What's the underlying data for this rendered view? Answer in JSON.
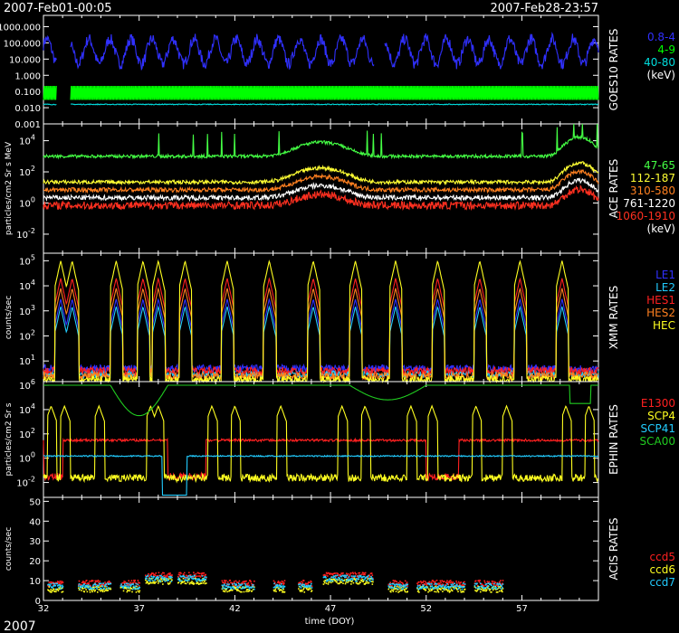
{
  "header": {
    "start": "2007-Feb01-00:05",
    "end": "2007-Feb28-23:57"
  },
  "footer": {
    "year": "2007",
    "xlabel": "time (DOY)"
  },
  "colors": {
    "bg": "#000000",
    "fg": "#ffffff"
  },
  "chart_data": [
    {
      "type": "line",
      "panel": "GOES10 RATES",
      "side_title": "GOES10 RATES",
      "unit_label": "(keV)",
      "ylabel": "",
      "yscale": "log",
      "ylim": [
        0.001,
        5000
      ],
      "ytick_labels": [
        "1000.000",
        "100.000",
        "10.000",
        "1.000",
        "0.100",
        "0.010",
        "0.001"
      ],
      "ytick_values": [
        1000,
        100,
        10,
        1,
        0.1,
        0.01,
        0.001
      ],
      "series": [
        {
          "name": "0.8-4",
          "color": "#3030ff",
          "pattern": "osc",
          "base": 30,
          "amp": 1.4,
          "period": 1.1,
          "noise": 0.35,
          "gaps": [
            [
              32.7,
              33.4
            ],
            [
              49.3,
              49.8
            ]
          ]
        },
        {
          "name": "4-9",
          "color": "#00ff00",
          "pattern": "band",
          "lo": 0.03,
          "hi": 0.22,
          "gaps": [
            [
              32.7,
              33.4
            ]
          ]
        },
        {
          "name": "40-80",
          "color": "#00dddd",
          "pattern": "flat",
          "base": 0.016,
          "noise": 0.05,
          "gaps": [
            [
              32.7,
              33.4
            ]
          ]
        }
      ]
    },
    {
      "type": "line",
      "panel": "ACE RATES",
      "side_title": "ACE RATES",
      "unit_label": "(keV)",
      "ylabel": "particles/cm2 Sr s MeV",
      "yscale": "log",
      "ylim": [
        0.0006,
        120000
      ],
      "ytick_labels": [
        "10^4",
        "10^2",
        "10^0",
        "10^-2"
      ],
      "ytick_values": [
        10000,
        100,
        1,
        0.01
      ],
      "series": [
        {
          "name": "47-65",
          "color": "#44ff44",
          "pattern": "ace",
          "base": 1000,
          "bump": 8,
          "noise": 0.1
        },
        {
          "name": "112-187",
          "color": "#ffff33",
          "pattern": "ace",
          "base": 22,
          "bump": 8,
          "noise": 0.12
        },
        {
          "name": "310-580",
          "color": "#ff8020",
          "pattern": "ace",
          "base": 7,
          "bump": 7,
          "noise": 0.14
        },
        {
          "name": "761-1220",
          "color": "#ffffff",
          "pattern": "ace",
          "base": 2.2,
          "bump": 6,
          "noise": 0.16
        },
        {
          "name": "1060-1910",
          "color": "#ff3020",
          "pattern": "ace",
          "base": 0.7,
          "bump": 5,
          "noise": 0.25
        }
      ]
    },
    {
      "type": "line",
      "panel": "XMM RATES",
      "side_title": "XMM RATES",
      "ylabel": "counts/sec",
      "yscale": "log",
      "ylim": [
        1.5,
        200000
      ],
      "ytick_labels": [
        "10^5",
        "10^4",
        "10^3",
        "10^2",
        "10^1"
      ],
      "ytick_values": [
        100000,
        10000,
        1000,
        100,
        10
      ],
      "spike_x": [
        32.9,
        33.5,
        35.8,
        37.2,
        38.0,
        39.4,
        41.6,
        43.8,
        46.1,
        48.3,
        50.4,
        52.6,
        54.8,
        56.9,
        59.1
      ],
      "series": [
        {
          "name": "LE1",
          "color": "#3030ff",
          "pattern": "spikes",
          "base": 5,
          "peak": 3000
        },
        {
          "name": "LE2",
          "color": "#22ccff",
          "pattern": "spikes",
          "base": 3,
          "peak": 1500
        },
        {
          "name": "HES1",
          "color": "#ff2020",
          "pattern": "spikes",
          "base": 4,
          "peak": 20000
        },
        {
          "name": "HES2",
          "color": "#ff8020",
          "pattern": "spikes",
          "base": 2.5,
          "peak": 8000
        },
        {
          "name": "HEC",
          "color": "#ffff20",
          "pattern": "spikes",
          "base": 1.8,
          "peak": 100000
        }
      ]
    },
    {
      "type": "line",
      "panel": "EPHIN RATES",
      "side_title": "EPHIN RATES",
      "ylabel": "particles/cm2 Sr s",
      "yscale": "log",
      "ylim": [
        0.0006,
        2000000
      ],
      "ytick_labels": [
        "10^6",
        "10^4",
        "10^2",
        "10^0",
        "10^-2"
      ],
      "ytick_values": [
        1000000,
        10000,
        100,
        1,
        0.01
      ],
      "series": [
        {
          "name": "E1300",
          "color": "#ff2020",
          "pattern": "ephin",
          "base": 30,
          "low": 0.03
        },
        {
          "name": "SCP4",
          "color": "#ffff20",
          "pattern": "ephin_spikes",
          "base": 0.012,
          "peak": 20000
        },
        {
          "name": "SCP41",
          "color": "#22ccff",
          "pattern": "ephin_flat",
          "base": 1.5
        },
        {
          "name": "SCA00",
          "color": "#20cc20",
          "pattern": "ephin_top",
          "base": 1000000
        }
      ]
    },
    {
      "type": "scatter",
      "panel": "ACIS RATES",
      "side_title": "ACIS RATES",
      "ylabel": "counts/sec",
      "yscale": "linear",
      "ylim": [
        0,
        52
      ],
      "ytick_labels": [
        "50",
        "40",
        "30",
        "20",
        "10",
        "0"
      ],
      "ytick_values": [
        50,
        40,
        30,
        20,
        10,
        0
      ],
      "xlim": [
        32,
        61
      ],
      "xtick_labels": [
        "32",
        "37",
        "42",
        "47",
        "52",
        "57"
      ],
      "xtick_values": [
        32,
        37,
        42,
        47,
        52,
        57
      ],
      "segments": [
        [
          32.2,
          33.0
        ],
        [
          33.8,
          35.5
        ],
        [
          36.0,
          37.0
        ],
        [
          37.3,
          38.7
        ],
        [
          39.0,
          40.5
        ],
        [
          41.3,
          43.0
        ],
        [
          44.0,
          44.6
        ],
        [
          45.3,
          46.0
        ],
        [
          46.6,
          49.2
        ],
        [
          50.0,
          51.0
        ],
        [
          51.5,
          54.0
        ],
        [
          54.5,
          56.0
        ]
      ],
      "series": [
        {
          "name": "ccd5",
          "color": "#ff2020",
          "level": 9
        },
        {
          "name": "ccd6",
          "color": "#ffff20",
          "level": 6
        },
        {
          "name": "ccd7",
          "color": "#22ccff",
          "level": 7.5
        }
      ]
    }
  ]
}
